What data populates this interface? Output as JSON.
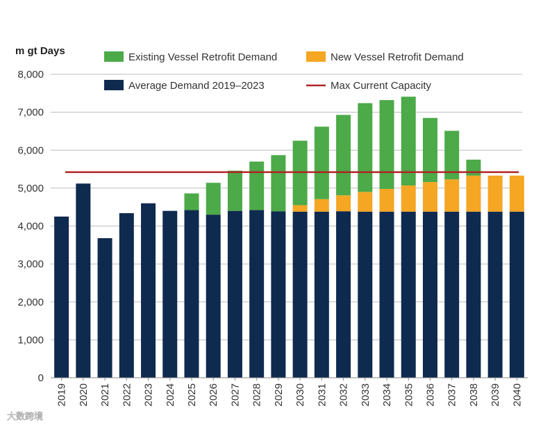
{
  "chart_data": {
    "type": "bar",
    "stacked": true,
    "title": "",
    "ylabel": "m gt Days",
    "xlabel": "",
    "ylim": [
      0,
      8000
    ],
    "yticks": [
      0,
      1000,
      2000,
      3000,
      4000,
      5000,
      6000,
      7000,
      8000
    ],
    "ytick_labels": [
      "0",
      "1,000",
      "2,000",
      "3,000",
      "4,000",
      "5,000",
      "6,000",
      "7,000",
      "8,000"
    ],
    "categories": [
      "2019",
      "2020",
      "2021",
      "2022",
      "2023",
      "2024",
      "2025",
      "2026",
      "2027",
      "2028",
      "2029",
      "2030",
      "2031",
      "2032",
      "2033",
      "2034",
      "2035",
      "2036",
      "2037",
      "2038",
      "2039",
      "2040"
    ],
    "series": [
      {
        "name": "Average Demand 2019–2023",
        "color": "#0f2a4f",
        "values": [
          4250,
          5120,
          3680,
          4340,
          4600,
          4400,
          4420,
          4300,
          4400,
          4420,
          4390,
          4380,
          4380,
          4390,
          4380,
          4380,
          4380,
          4380,
          4380,
          4380,
          4380,
          4380
        ]
      },
      {
        "name": "New Vessel Retrofit Demand",
        "color": "#f5a623",
        "values": [
          0,
          0,
          0,
          0,
          0,
          0,
          0,
          0,
          0,
          0,
          0,
          170,
          330,
          420,
          520,
          600,
          690,
          780,
          850,
          950,
          950,
          950
        ]
      },
      {
        "name": "Existing Vessel Retrofit Demand",
        "color": "#4caa48",
        "values": [
          0,
          0,
          0,
          0,
          0,
          0,
          440,
          840,
          1060,
          1280,
          1480,
          1700,
          1910,
          2120,
          2340,
          2340,
          2340,
          1690,
          1280,
          420,
          0,
          0
        ]
      }
    ],
    "reference_line": {
      "name": "Max Current Capacity",
      "value": 5420,
      "color": "#b22222"
    },
    "legend": [
      {
        "label": "Existing Vessel Retrofit Demand",
        "color": "#4caa48",
        "kind": "box"
      },
      {
        "label": "New Vessel Retrofit Demand",
        "color": "#f5a623",
        "kind": "box"
      },
      {
        "label": "Average Demand 2019–2023",
        "color": "#0f2a4f",
        "kind": "box"
      },
      {
        "label": "Max Current Capacity",
        "color": "#b22222",
        "kind": "line"
      }
    ],
    "legend_position": "top",
    "grid": true
  },
  "watermark": {
    "text": "大数跨境"
  }
}
